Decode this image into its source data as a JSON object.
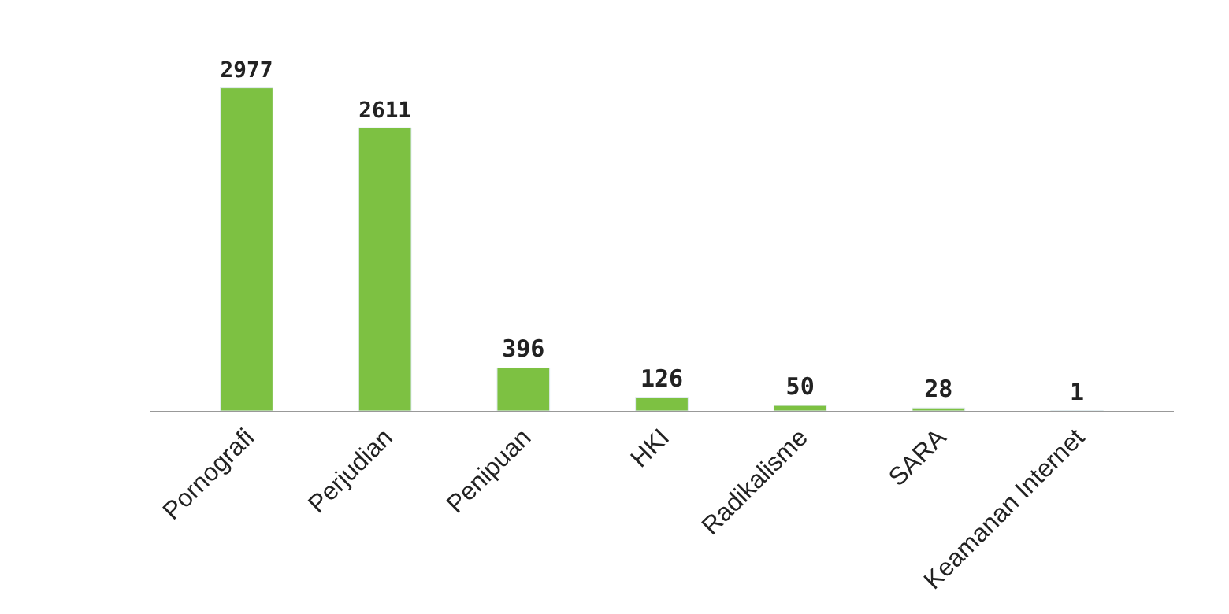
{
  "chart_data": {
    "type": "bar",
    "categories": [
      "Pornografi",
      "Perjudian",
      "Penipuan",
      "HKI",
      "Radikalisme",
      "SARA",
      "Keamanan Internet"
    ],
    "values": [
      2977,
      2611,
      396,
      126,
      50,
      28,
      1
    ],
    "color": "#7dc142",
    "data_labels": true,
    "tick_labels": "x",
    "legend": false
  }
}
